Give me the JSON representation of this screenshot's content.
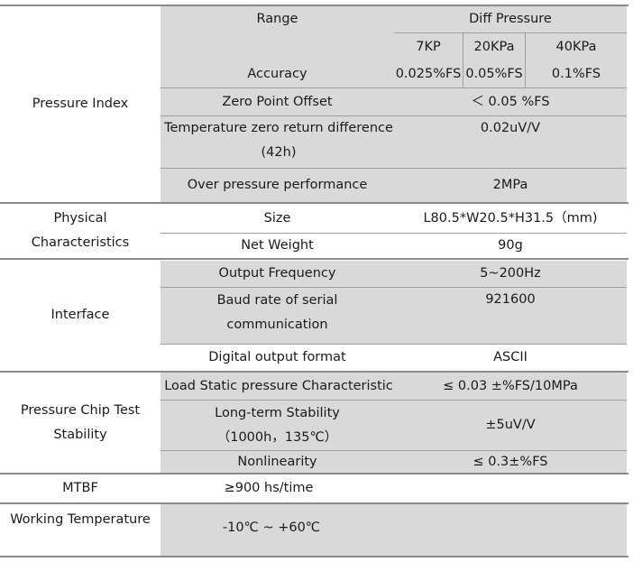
{
  "groups": {
    "pressure_index": "Pressure Index",
    "physical": "Physical Characteristics",
    "interface": "Interface",
    "chip_stability": "Pressure Chip Test Stability",
    "mtbf": "MTBF",
    "working_temp": "Working Temperature"
  },
  "pressure": {
    "range_label": "Range",
    "range_value": "Diff Pressure",
    "ranges": [
      "7KP",
      "20KPa",
      "40KPa"
    ],
    "accuracy_label": "Accuracy",
    "accuracy_values": [
      "0.025%FS",
      "0.05%FS",
      "0.1%FS"
    ],
    "zero_offset_label": "Zero Point Offset",
    "zero_offset_value": "＜ 0.05 %FS",
    "temp_zero_label": "Temperature zero return difference",
    "temp_zero_sub": "(42h)",
    "temp_zero_value": "0.02uV/V",
    "over_pressure_label": "Over pressure performance",
    "over_pressure_value": "2MPa"
  },
  "physical": {
    "size_label": "Size",
    "size_value": "L80.5*W20.5*H31.5（mm)",
    "weight_label": "Net Weight",
    "weight_value": "90g"
  },
  "interface": {
    "freq_label": "Output Frequency",
    "freq_value": "5~200Hz",
    "baud_label": "Baud rate of serial communication",
    "baud_value": "921600",
    "format_label": "Digital output format",
    "format_value": "ASCII"
  },
  "chip": {
    "static_label": "Load Static pressure Characteristic",
    "static_value": "≤ 0.03 ±%FS/10MPa",
    "longterm_label": "Long-term Stability",
    "longterm_sub": "（1000h，135℃）",
    "longterm_value": "±5uV/V",
    "nonlin_label": "Nonlinearity",
    "nonlin_value": "≤ 0.3±%FS"
  },
  "mtbf_value": "≥900 hs/time",
  "working_temp_value": "-10℃ ~ +60℃"
}
